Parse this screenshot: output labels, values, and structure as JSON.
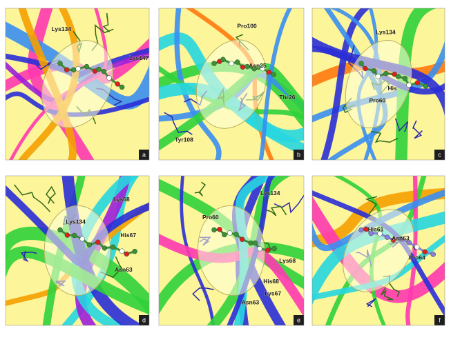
{
  "panels": [
    {
      "letter": "a",
      "residues": [
        "Lys134",
        "Lys147"
      ]
    },
    {
      "letter": "b",
      "residues": [
        "Pro100",
        "Asn25",
        "Thr26",
        "Tyr108"
      ]
    },
    {
      "letter": "c",
      "residues": [
        "Lys134",
        "His",
        "Pro60"
      ]
    },
    {
      "letter": "d",
      "residues": [
        "Lys134",
        "Lys68",
        "His67",
        "Asn63"
      ]
    },
    {
      "letter": "e",
      "residues": [
        "Pro60",
        "Lys134",
        "Lys68",
        "His68",
        "Asn63",
        "Lys67"
      ]
    },
    {
      "letter": "f",
      "residues": [
        "His61",
        "Asn63",
        "Pro64"
      ]
    }
  ]
}
